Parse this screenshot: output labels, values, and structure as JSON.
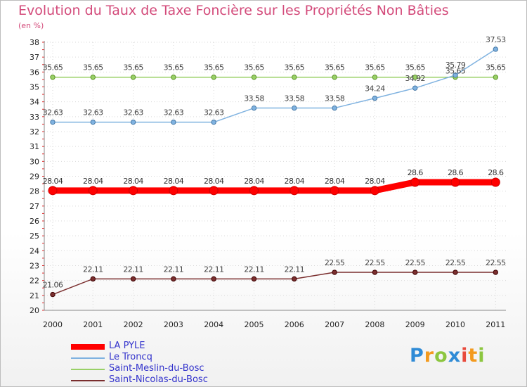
{
  "chart_data": {
    "type": "line",
    "title": "Evolution du Taux de Taxe Foncière sur les Propriétés Non Bâties",
    "ylabel": "(en %)",
    "xlabel": "",
    "ylim": [
      20,
      38
    ],
    "categories": [
      "2000",
      "2001",
      "2002",
      "2003",
      "2004",
      "2005",
      "2006",
      "2007",
      "2008",
      "2009",
      "2010",
      "2011"
    ],
    "yticks": [
      "20",
      "21",
      "22",
      "23",
      "24",
      "25",
      "26",
      "27",
      "28",
      "29",
      "30",
      "31",
      "32",
      "33",
      "34",
      "35",
      "36",
      "37",
      "38"
    ],
    "series": [
      {
        "name": "LA PYLE",
        "color": "#ff0000",
        "values": [
          28.04,
          28.04,
          28.04,
          28.04,
          28.04,
          28.04,
          28.04,
          28.04,
          28.04,
          28.6,
          28.6,
          28.6
        ],
        "labels": [
          "28.04",
          "28.04",
          "28.04",
          "28.04",
          "28.04",
          "28.04",
          "28.04",
          "28.04",
          "28.04",
          "28.6",
          "28.6",
          "28.6"
        ]
      },
      {
        "name": "Le Troncq",
        "color": "#7fb2e0",
        "values": [
          32.63,
          32.63,
          32.63,
          32.63,
          32.63,
          33.58,
          33.58,
          33.58,
          34.24,
          34.92,
          35.79,
          37.53
        ],
        "labels": [
          "32.63",
          "32.63",
          "32.63",
          "32.63",
          "32.63",
          "33.58",
          "33.58",
          "33.58",
          "34.24",
          "34.92",
          "35.79",
          "37.53"
        ]
      },
      {
        "name": "Saint-Meslin-du-Bosc",
        "color": "#99d066",
        "values": [
          35.65,
          35.65,
          35.65,
          35.65,
          35.65,
          35.65,
          35.65,
          35.65,
          35.65,
          35.65,
          35.65,
          35.65
        ],
        "labels": [
          "35.65",
          "35.65",
          "35.65",
          "35.65",
          "35.65",
          "35.65",
          "35.65",
          "35.65",
          "35.65",
          "35.65",
          "35.65",
          "35.65"
        ]
      },
      {
        "name": "Saint-Nicolas-du-Bosc",
        "color": "#7a2e2e",
        "values": [
          21.06,
          22.11,
          22.11,
          22.11,
          22.11,
          22.11,
          22.11,
          22.55,
          22.55,
          22.55,
          22.55,
          22.55
        ],
        "labels": [
          "21.06",
          "22.11",
          "22.11",
          "22.11",
          "22.11",
          "22.11",
          "22.11",
          "22.55",
          "22.55",
          "22.55",
          "22.55",
          "22.55"
        ]
      }
    ]
  },
  "logo": {
    "text": "Proxiti",
    "letters": [
      "P",
      "r",
      "o",
      "x",
      "i",
      "t",
      "i"
    ]
  }
}
